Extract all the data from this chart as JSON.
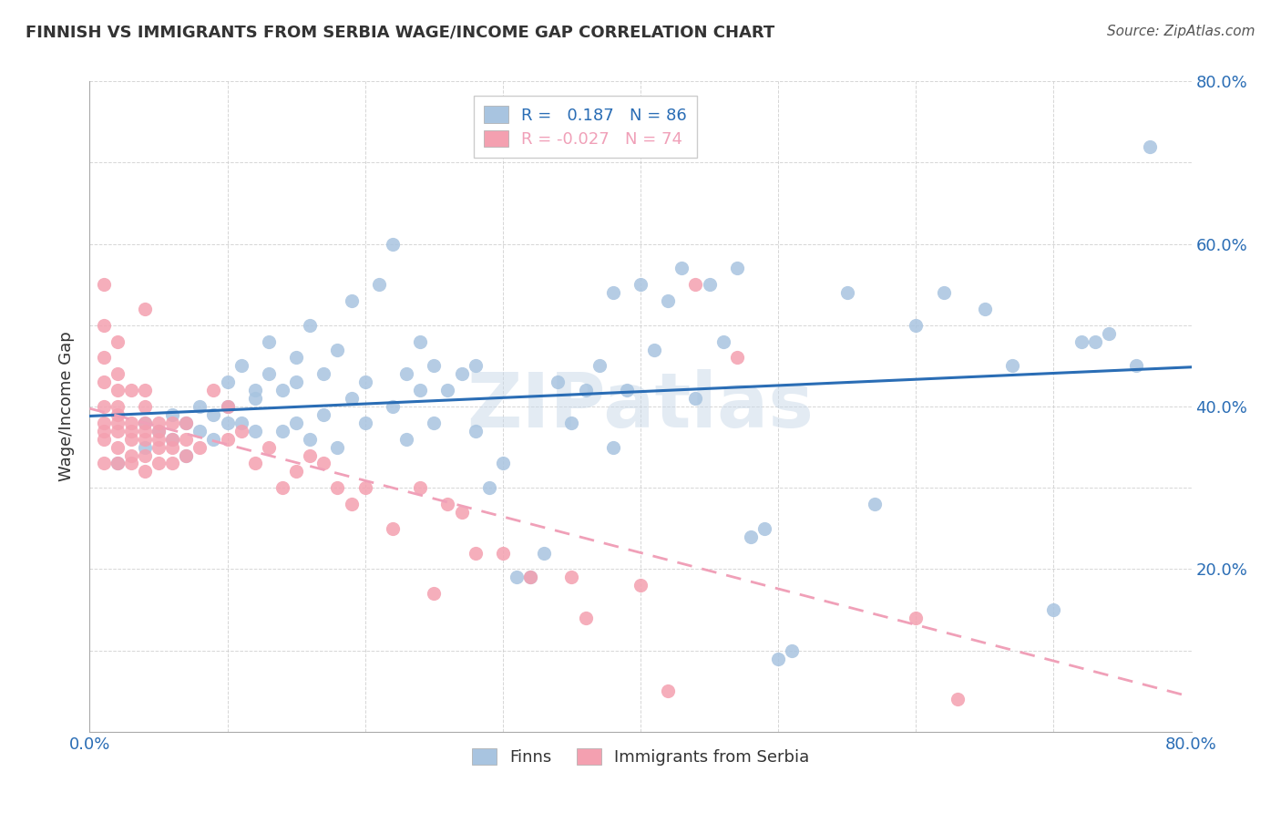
{
  "title": "FINNISH VS IMMIGRANTS FROM SERBIA WAGE/INCOME GAP CORRELATION CHART",
  "source": "Source: ZipAtlas.com",
  "ylabel": "Wage/Income Gap",
  "xlim": [
    0.0,
    0.8
  ],
  "ylim": [
    0.0,
    0.8
  ],
  "watermark": "ZIPatlas",
  "legend_r_finn": "0.187",
  "legend_n_finn": "86",
  "legend_r_serb": "-0.027",
  "legend_n_serb": "74",
  "finn_color": "#a8c4e0",
  "serb_color": "#f4a0b0",
  "finn_line_color": "#2a6db5",
  "serb_line_color": "#f0a0b8",
  "background_color": "#ffffff",
  "grid_color": "#cccccc",
  "finns_x": [
    0.02,
    0.04,
    0.04,
    0.05,
    0.06,
    0.06,
    0.07,
    0.07,
    0.08,
    0.08,
    0.09,
    0.09,
    0.1,
    0.1,
    0.1,
    0.11,
    0.11,
    0.12,
    0.12,
    0.12,
    0.13,
    0.13,
    0.14,
    0.14,
    0.15,
    0.15,
    0.15,
    0.16,
    0.16,
    0.17,
    0.17,
    0.18,
    0.18,
    0.19,
    0.19,
    0.2,
    0.2,
    0.21,
    0.22,
    0.22,
    0.23,
    0.23,
    0.24,
    0.24,
    0.25,
    0.25,
    0.26,
    0.27,
    0.28,
    0.28,
    0.29,
    0.3,
    0.31,
    0.32,
    0.33,
    0.34,
    0.35,
    0.36,
    0.37,
    0.38,
    0.38,
    0.39,
    0.4,
    0.41,
    0.42,
    0.43,
    0.44,
    0.45,
    0.46,
    0.47,
    0.48,
    0.49,
    0.5,
    0.51,
    0.55,
    0.57,
    0.6,
    0.62,
    0.65,
    0.67,
    0.7,
    0.72,
    0.73,
    0.74,
    0.76,
    0.77
  ],
  "finns_y": [
    0.33,
    0.35,
    0.38,
    0.37,
    0.36,
    0.39,
    0.34,
    0.38,
    0.37,
    0.4,
    0.36,
    0.39,
    0.38,
    0.4,
    0.43,
    0.45,
    0.38,
    0.42,
    0.37,
    0.41,
    0.44,
    0.48,
    0.37,
    0.42,
    0.46,
    0.38,
    0.43,
    0.5,
    0.36,
    0.44,
    0.39,
    0.35,
    0.47,
    0.41,
    0.53,
    0.38,
    0.43,
    0.55,
    0.4,
    0.6,
    0.36,
    0.44,
    0.42,
    0.48,
    0.38,
    0.45,
    0.42,
    0.44,
    0.37,
    0.45,
    0.3,
    0.33,
    0.19,
    0.19,
    0.22,
    0.43,
    0.38,
    0.42,
    0.45,
    0.35,
    0.54,
    0.42,
    0.55,
    0.47,
    0.53,
    0.57,
    0.41,
    0.55,
    0.48,
    0.57,
    0.24,
    0.25,
    0.09,
    0.1,
    0.54,
    0.28,
    0.5,
    0.54,
    0.52,
    0.45,
    0.15,
    0.48,
    0.48,
    0.49,
    0.45,
    0.72
  ],
  "serbs_x": [
    0.01,
    0.01,
    0.01,
    0.01,
    0.01,
    0.01,
    0.01,
    0.01,
    0.01,
    0.02,
    0.02,
    0.02,
    0.02,
    0.02,
    0.02,
    0.02,
    0.02,
    0.02,
    0.03,
    0.03,
    0.03,
    0.03,
    0.03,
    0.03,
    0.04,
    0.04,
    0.04,
    0.04,
    0.04,
    0.04,
    0.04,
    0.04,
    0.05,
    0.05,
    0.05,
    0.05,
    0.05,
    0.06,
    0.06,
    0.06,
    0.06,
    0.07,
    0.07,
    0.07,
    0.08,
    0.09,
    0.1,
    0.1,
    0.11,
    0.12,
    0.13,
    0.14,
    0.15,
    0.16,
    0.17,
    0.18,
    0.19,
    0.2,
    0.22,
    0.24,
    0.25,
    0.26,
    0.27,
    0.28,
    0.3,
    0.32,
    0.35,
    0.36,
    0.4,
    0.42,
    0.44,
    0.47,
    0.6,
    0.63
  ],
  "serbs_y": [
    0.33,
    0.36,
    0.37,
    0.38,
    0.4,
    0.43,
    0.46,
    0.5,
    0.55,
    0.33,
    0.35,
    0.37,
    0.38,
    0.39,
    0.4,
    0.42,
    0.44,
    0.48,
    0.33,
    0.34,
    0.36,
    0.37,
    0.38,
    0.42,
    0.32,
    0.34,
    0.36,
    0.37,
    0.38,
    0.4,
    0.42,
    0.52,
    0.33,
    0.35,
    0.36,
    0.37,
    0.38,
    0.33,
    0.35,
    0.36,
    0.38,
    0.34,
    0.36,
    0.38,
    0.35,
    0.42,
    0.36,
    0.4,
    0.37,
    0.33,
    0.35,
    0.3,
    0.32,
    0.34,
    0.33,
    0.3,
    0.28,
    0.3,
    0.25,
    0.3,
    0.17,
    0.28,
    0.27,
    0.22,
    0.22,
    0.19,
    0.19,
    0.14,
    0.18,
    0.05,
    0.55,
    0.46,
    0.14,
    0.04
  ]
}
